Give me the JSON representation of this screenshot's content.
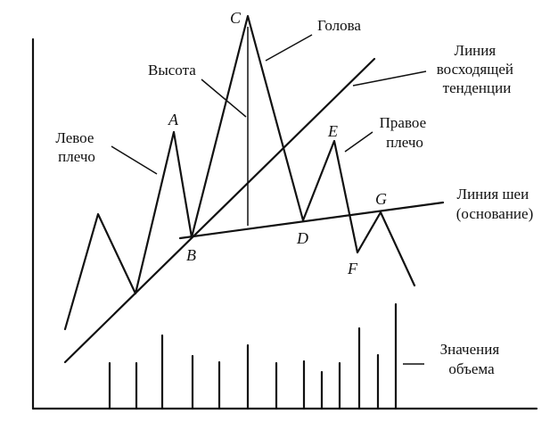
{
  "points": {
    "A": "A",
    "B": "B",
    "C": "C",
    "D": "D",
    "E": "E",
    "F": "F",
    "G": "G"
  },
  "labels": {
    "head": "Голова",
    "height": "Высота",
    "left_shoulder": [
      "Левое",
      "плечо"
    ],
    "right_shoulder": [
      "Правое",
      "плечо"
    ],
    "uptrend_line": [
      "Линия",
      "восходящей",
      "тенденции"
    ],
    "neckline": [
      "Линия шеи",
      "(основание)"
    ],
    "volume": [
      "Значения",
      "объема"
    ]
  },
  "colors": {
    "ink": "#111111",
    "background": "#ffffff"
  }
}
